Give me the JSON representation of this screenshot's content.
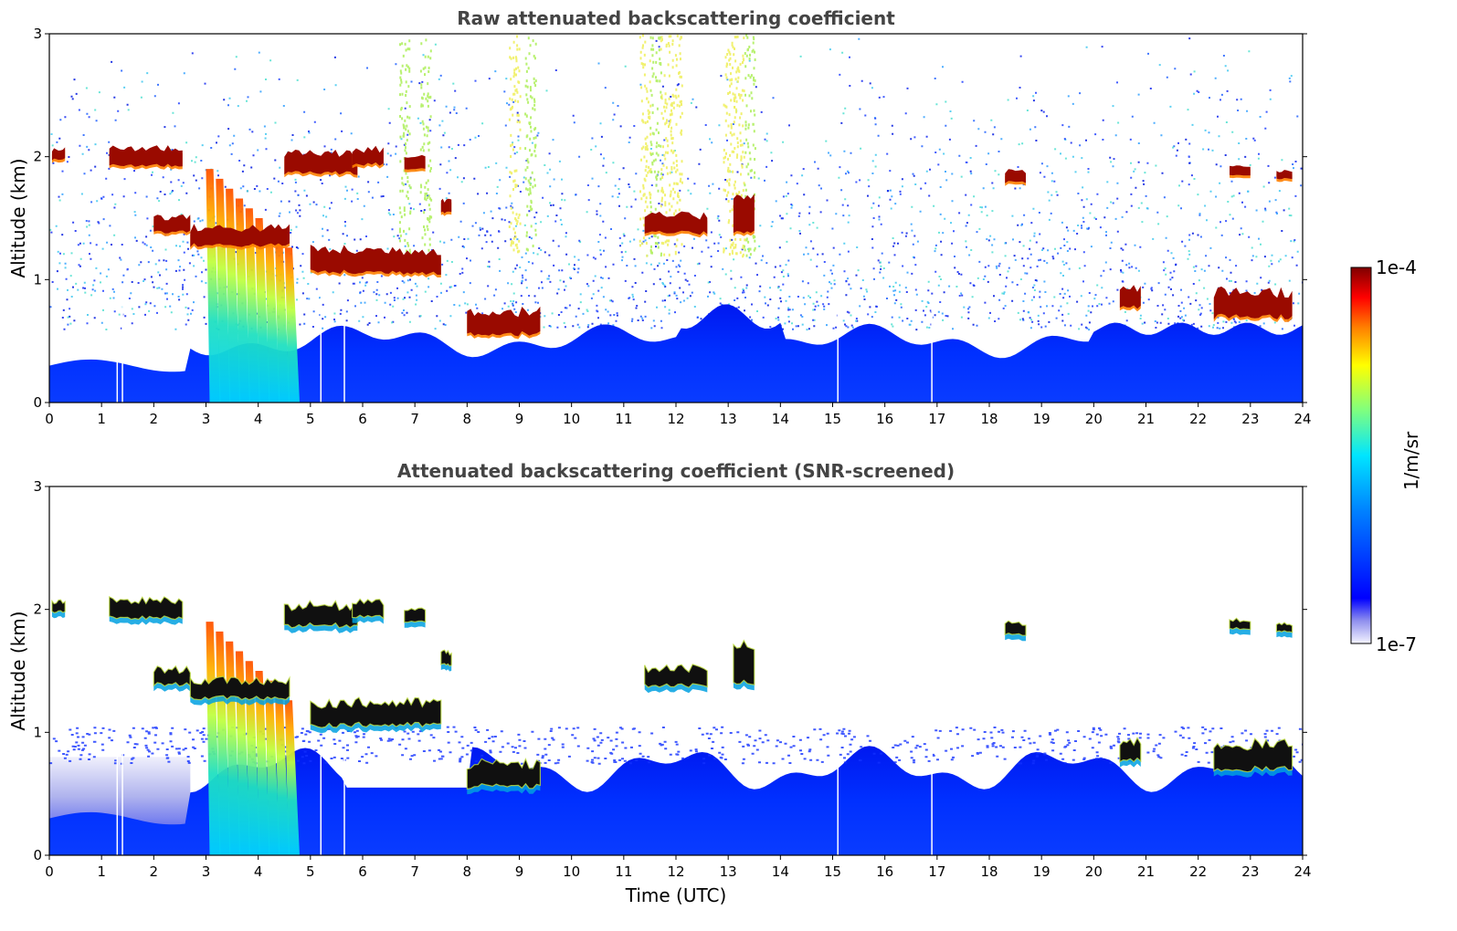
{
  "chart_data": [
    {
      "type": "heatmap",
      "title": "Raw attenuated backscattering coefficient",
      "xlabel": "",
      "ylabel": "Altitude (km)",
      "xlim": [
        0,
        24
      ],
      "ylim": [
        0,
        3
      ],
      "x_ticks": [
        "0",
        "1",
        "2",
        "3",
        "4",
        "5",
        "6",
        "7",
        "8",
        "9",
        "10",
        "11",
        "12",
        "13",
        "14",
        "15",
        "16",
        "17",
        "18",
        "19",
        "20",
        "21",
        "22",
        "23",
        "24"
      ],
      "y_ticks": [
        "0",
        "1",
        "2",
        "3"
      ],
      "features": [
        {
          "kind": "cloud",
          "t0": 0.05,
          "t1": 0.3,
          "alt": 2.02,
          "thick": 0.08
        },
        {
          "kind": "cloud",
          "t0": 1.15,
          "t1": 2.55,
          "alt": 2.0,
          "thick": 0.14
        },
        {
          "kind": "cloud",
          "t0": 2.0,
          "t1": 2.7,
          "alt": 1.45,
          "thick": 0.12
        },
        {
          "kind": "cloud",
          "t0": 2.7,
          "t1": 4.6,
          "alt": 1.35,
          "thick": 0.14
        },
        {
          "kind": "cloud",
          "t0": 4.5,
          "t1": 5.9,
          "alt": 1.95,
          "thick": 0.16
        },
        {
          "kind": "cloud",
          "t0": 5.0,
          "t1": 7.5,
          "alt": 1.15,
          "thick": 0.18
        },
        {
          "kind": "cloud",
          "t0": 5.8,
          "t1": 6.4,
          "alt": 2.0,
          "thick": 0.12
        },
        {
          "kind": "cloud",
          "t0": 6.8,
          "t1": 7.2,
          "alt": 1.95,
          "thick": 0.1
        },
        {
          "kind": "cloud",
          "t0": 7.5,
          "t1": 7.7,
          "alt": 1.6,
          "thick": 0.1
        },
        {
          "kind": "cloud",
          "t0": 8.0,
          "t1": 9.4,
          "alt": 0.65,
          "thick": 0.18
        },
        {
          "kind": "cloud",
          "t0": 11.4,
          "t1": 12.6,
          "alt": 1.45,
          "thick": 0.14
        },
        {
          "kind": "cloud",
          "t0": 13.1,
          "t1": 13.5,
          "alt": 1.55,
          "thick": 0.3
        },
        {
          "kind": "cloud",
          "t0": 18.3,
          "t1": 18.7,
          "alt": 1.84,
          "thick": 0.09
        },
        {
          "kind": "cloud",
          "t0": 20.5,
          "t1": 20.9,
          "alt": 0.85,
          "thick": 0.15
        },
        {
          "kind": "cloud",
          "t0": 22.3,
          "t1": 23.8,
          "alt": 0.8,
          "thick": 0.2
        },
        {
          "kind": "cloud",
          "t0": 22.6,
          "t1": 23.0,
          "alt": 1.88,
          "thick": 0.07
        },
        {
          "kind": "cloud",
          "t0": 23.5,
          "t1": 23.8,
          "alt": 1.85,
          "thick": 0.06
        },
        {
          "kind": "precip",
          "t0": 3.0,
          "t1": 4.7,
          "alt": 1.9
        },
        {
          "kind": "boundary_layer",
          "t0": 0,
          "t1": 24,
          "alt": 0.5
        },
        {
          "kind": "data_gap",
          "t": 1.3
        },
        {
          "kind": "data_gap",
          "t": 1.4
        },
        {
          "kind": "data_gap",
          "t": 5.2
        },
        {
          "kind": "data_gap",
          "t": 5.65
        },
        {
          "kind": "data_gap",
          "t": 15.1
        },
        {
          "kind": "data_gap",
          "t": 16.9
        }
      ]
    },
    {
      "type": "heatmap",
      "title": "Attenuated backscattering coefficient (SNR-screened)",
      "xlabel": "Time (UTC)",
      "ylabel": "Altitude (km)",
      "xlim": [
        0,
        24
      ],
      "ylim": [
        0,
        3
      ],
      "x_ticks": [
        "0",
        "1",
        "2",
        "3",
        "4",
        "5",
        "6",
        "7",
        "8",
        "9",
        "10",
        "11",
        "12",
        "13",
        "14",
        "15",
        "16",
        "17",
        "18",
        "19",
        "20",
        "21",
        "22",
        "23",
        "24"
      ],
      "y_ticks": [
        "0",
        "1",
        "2",
        "3"
      ]
    }
  ],
  "colorbar": {
    "label": "1/m/sr",
    "max_label": "1e-4",
    "min_label": "1e-7",
    "colors": [
      "#7f0000",
      "#ff0000",
      "#ffa500",
      "#ffff00",
      "#7fff7f",
      "#00ffff",
      "#0080ff",
      "#0000ff",
      "#b0b0f0",
      "#f0f0ff"
    ]
  }
}
